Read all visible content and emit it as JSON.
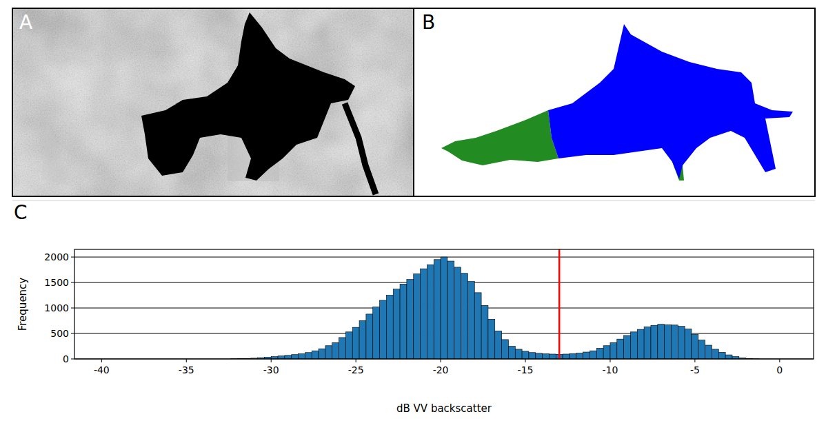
{
  "panels": [
    {
      "label": "A"
    },
    {
      "label": "B"
    },
    {
      "label": "C"
    }
  ],
  "chart_data": {
    "type": "histogram",
    "x_label": "dB VV backscatter",
    "y_label": "Frequency",
    "color": "#1f77b4",
    "bins": [
      -40,
      -39.6,
      -39.2,
      -38.8,
      -38.4,
      -38,
      -37.6,
      -37.2,
      -36.8,
      -36.4,
      -36,
      -35.6,
      -35.2,
      -34.8,
      -34.4,
      -34,
      -33.6,
      -33.2,
      -32.8,
      -32.4,
      -32,
      -31.6,
      -31.2,
      -30.8,
      -30.4,
      -30,
      -29.6,
      -29.2,
      -28.8,
      -28.4,
      -28,
      -27.6,
      -27.2,
      -26.8,
      -26.4,
      -26,
      -25.6,
      -25.2,
      -24.8,
      -24.4,
      -24,
      -23.6,
      -23.2,
      -22.8,
      -22.4,
      -22,
      -21.6,
      -21.2,
      -20.8,
      -20.4,
      -20,
      -19.6,
      -19.2,
      -18.8,
      -18.4,
      -18,
      -17.6,
      -17.2,
      -16.8,
      -16.4,
      -16,
      -15.6,
      -15.2,
      -14.8,
      -14.4,
      -14,
      -13.6,
      -13.2,
      -12.8,
      -12.4,
      -12,
      -11.6,
      -11.2,
      -10.8,
      -10.4,
      -10,
      -9.6,
      -9.2,
      -8.8,
      -8.4,
      -8,
      -7.6,
      -7.2,
      -6.8,
      -6.4,
      -6,
      -5.6,
      -5.2,
      -4.8,
      -4.4,
      -4,
      -3.6,
      -3.2,
      -2.8,
      -2.4,
      -2,
      -1.6,
      -1.2,
      -0.8,
      -0.4,
      0
    ],
    "values": [
      0,
      0,
      0,
      0,
      0,
      0,
      0,
      0,
      0,
      0,
      0,
      0,
      0,
      0,
      0,
      0,
      0,
      0,
      0,
      3,
      6,
      10,
      15,
      25,
      35,
      45,
      58,
      70,
      85,
      100,
      125,
      160,
      200,
      260,
      320,
      420,
      530,
      620,
      750,
      880,
      1020,
      1150,
      1250,
      1370,
      1470,
      1560,
      1670,
      1770,
      1850,
      1950,
      2000,
      1920,
      1800,
      1680,
      1520,
      1300,
      1050,
      780,
      550,
      380,
      250,
      190,
      150,
      125,
      110,
      100,
      95,
      90,
      95,
      105,
      115,
      135,
      160,
      210,
      260,
      320,
      390,
      460,
      530,
      580,
      630,
      660,
      680,
      670,
      665,
      640,
      590,
      480,
      370,
      270,
      190,
      130,
      80,
      45,
      20,
      8,
      2,
      0,
      0,
      0
    ],
    "reference_lines": [
      {
        "x": -13,
        "color": "#ff0000"
      }
    ],
    "xlim": [
      -41.6,
      2.0
    ],
    "ylim": [
      0,
      2150
    ],
    "xticks": [
      -40,
      -35,
      -30,
      -25,
      -20,
      -15,
      -10,
      -5,
      0
    ],
    "yticks": [
      0,
      500,
      1000,
      1500,
      2000
    ],
    "grid": "y"
  }
}
